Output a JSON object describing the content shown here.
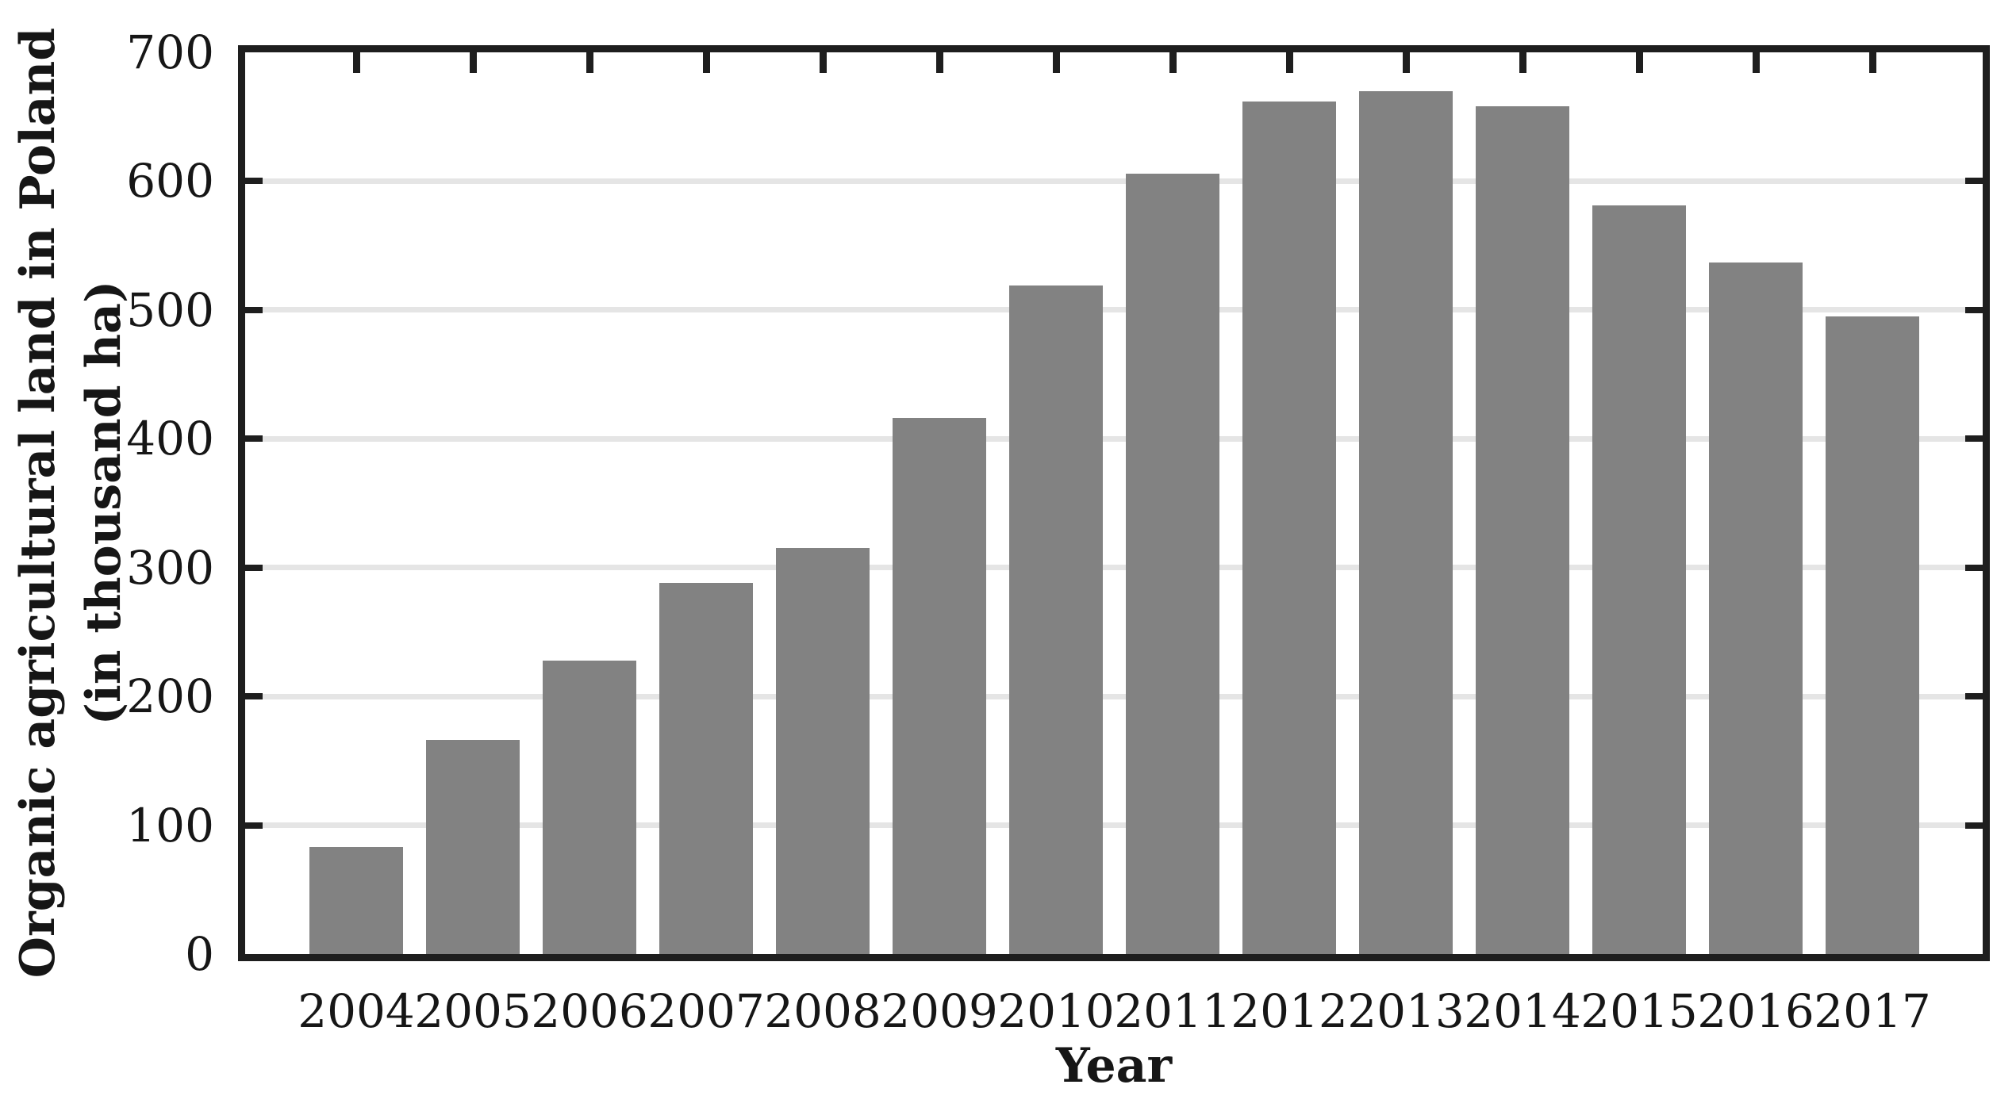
{
  "chart_data": {
    "type": "bar",
    "title": "",
    "categories": [
      "2004",
      "2005",
      "2006",
      "2007",
      "2008",
      "2009",
      "2010",
      "2011",
      "2012",
      "2013",
      "2014",
      "2015",
      "2016",
      "2017"
    ],
    "values": [
      83,
      166,
      228,
      288,
      315,
      416,
      519,
      606,
      662,
      670,
      658,
      581,
      537,
      495
    ],
    "xlabel": "Year",
    "ylabel_line1": "Organic agricultural land in Poland",
    "ylabel_line2": "(in thousand ha)",
    "ylim": [
      0,
      700
    ],
    "yticks": [
      0,
      100,
      200,
      300,
      400,
      500,
      600,
      700
    ],
    "grid": "horizontal major gridlines, on",
    "legend": "none",
    "bar_color": "#828282",
    "axis_color": "#1e1e1e",
    "gridline_color": "#e5e5e5"
  }
}
